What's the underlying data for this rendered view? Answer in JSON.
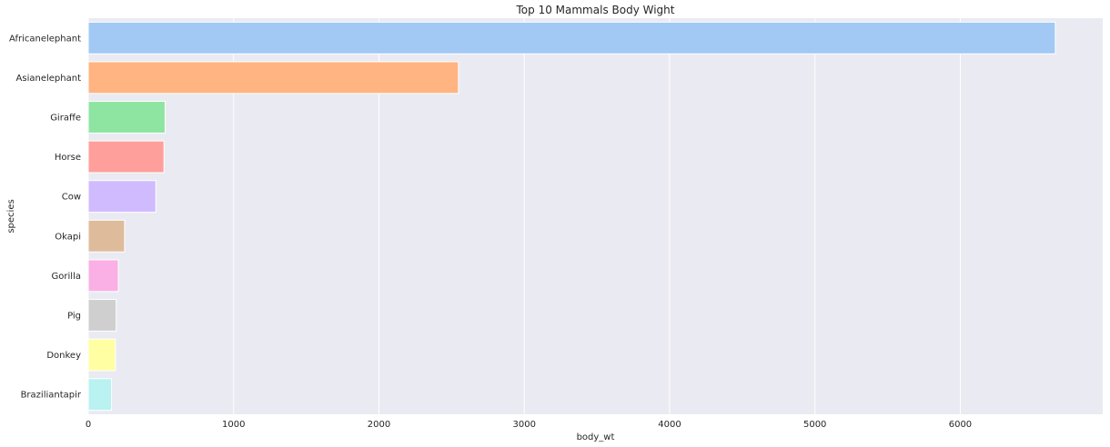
{
  "chart_data": {
    "type": "bar",
    "orientation": "horizontal",
    "title": "Top 10 Mammals Body Wight",
    "xlabel": "body_wt",
    "ylabel": "species",
    "xlim": [
      0,
      6980
    ],
    "xticks": [
      0,
      1000,
      2000,
      3000,
      4000,
      5000,
      6000
    ],
    "grid": true,
    "categories": [
      "Africanelephant",
      "Asianelephant",
      "Giraffe",
      "Horse",
      "Cow",
      "Okapi",
      "Gorilla",
      "Pig",
      "Donkey",
      "Braziliantapir"
    ],
    "values": [
      6654,
      2547,
      529,
      521,
      465,
      250,
      207,
      192,
      187,
      160
    ],
    "colors": [
      "#a1c9f4",
      "#ffb482",
      "#8de5a1",
      "#ff9f9b",
      "#d0bbff",
      "#debb9b",
      "#fab0e4",
      "#cfcfcf",
      "#fffea3",
      "#b9f2f0"
    ]
  }
}
